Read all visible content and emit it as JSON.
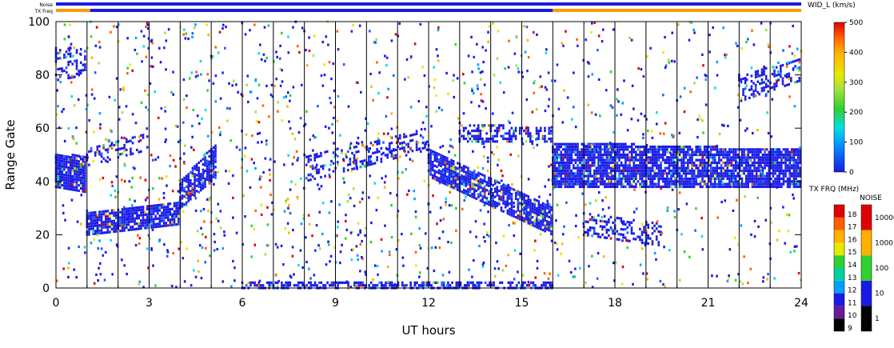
{
  "chart_data": {
    "type": "heatmap",
    "xlabel": "UT hours",
    "ylabel": "Range Gate",
    "xlim": [
      0,
      24
    ],
    "ylim": [
      0,
      100
    ],
    "x_ticks": [
      "0",
      "3",
      "6",
      "9",
      "12",
      "15",
      "18",
      "21",
      "24"
    ],
    "y_ticks": [
      "0",
      "20",
      "40",
      "60",
      "80",
      "100"
    ],
    "vertical_lines_ut": [
      1,
      2,
      3,
      4,
      5,
      6,
      7,
      8,
      9,
      10,
      11,
      12,
      13,
      14,
      15,
      16,
      17,
      18,
      19,
      20,
      21,
      22,
      23
    ],
    "top_bars": {
      "noise_label": "Noise",
      "txfreq_label": "TX Freq",
      "noise_color": "#1a1ae6",
      "txfreq_segments": [
        {
          "start": 0,
          "end": 1.1,
          "color": "#ff9a00"
        },
        {
          "start": 1.1,
          "end": 16,
          "color": "#1a1ae6"
        },
        {
          "start": 16,
          "end": 24,
          "color": "#ff9a00"
        }
      ]
    },
    "width_colorbar": {
      "title": "WID_L (km/s)",
      "ticks": [
        "0",
        "100",
        "200",
        "300",
        "400",
        "500"
      ],
      "range": [
        0,
        500
      ]
    },
    "txfreq_colorbar": {
      "title": "TX FRQ (MHz)",
      "ticks": [
        "9",
        "10",
        "11",
        "12",
        "13",
        "14",
        "15",
        "16",
        "17",
        "18"
      ]
    },
    "noise_colorbar": {
      "title": "NOISE",
      "ticks": [
        "1",
        "10",
        "100",
        "1000",
        "10000"
      ]
    },
    "bands": [
      {
        "t0": 0.0,
        "t1": 1.0,
        "g0": 38,
        "g1": 50,
        "g0e": 36,
        "g1e": 50,
        "density": 0.9
      },
      {
        "t0": 1.0,
        "t1": 4.0,
        "g0": 20,
        "g1": 29,
        "g0e": 24,
        "g1e": 32,
        "density": 0.85
      },
      {
        "t0": 4.0,
        "t1": 5.2,
        "g0": 30,
        "g1": 40,
        "g0e": 42,
        "g1e": 55,
        "density": 0.75
      },
      {
        "t0": 1.0,
        "t1": 3.0,
        "g0": 46,
        "g1": 52,
        "g0e": 52,
        "g1e": 58,
        "density": 0.3
      },
      {
        "t0": 12.0,
        "t1": 16.0,
        "g0": 42,
        "g1": 52,
        "g0e": 20,
        "g1e": 30,
        "density": 0.8
      },
      {
        "t0": 13.0,
        "t1": 16.0,
        "g0": 55,
        "g1": 62,
        "g0e": 55,
        "g1e": 60,
        "density": 0.5
      },
      {
        "t0": 16.0,
        "t1": 24.0,
        "g0": 38,
        "g1": 55,
        "g0e": 38,
        "g1e": 52,
        "density": 0.85
      },
      {
        "t0": 8.0,
        "t1": 12.0,
        "g0": 40,
        "g1": 50,
        "g0e": 52,
        "g1e": 60,
        "density": 0.35
      },
      {
        "t0": 6.0,
        "t1": 16.0,
        "g0": 0,
        "g1": 2,
        "g0e": 0,
        "g1e": 2,
        "density": 0.55
      },
      {
        "t0": 17.0,
        "t1": 19.5,
        "g0": 20,
        "g1": 28,
        "g0e": 16,
        "g1e": 24,
        "density": 0.4
      },
      {
        "t0": 0.0,
        "t1": 1.0,
        "g0": 78,
        "g1": 90,
        "g0e": 80,
        "g1e": 90,
        "density": 0.35
      },
      {
        "t0": 22.0,
        "t1": 24.0,
        "g0": 70,
        "g1": 80,
        "g0e": 78,
        "g1e": 86,
        "density": 0.45
      }
    ]
  }
}
